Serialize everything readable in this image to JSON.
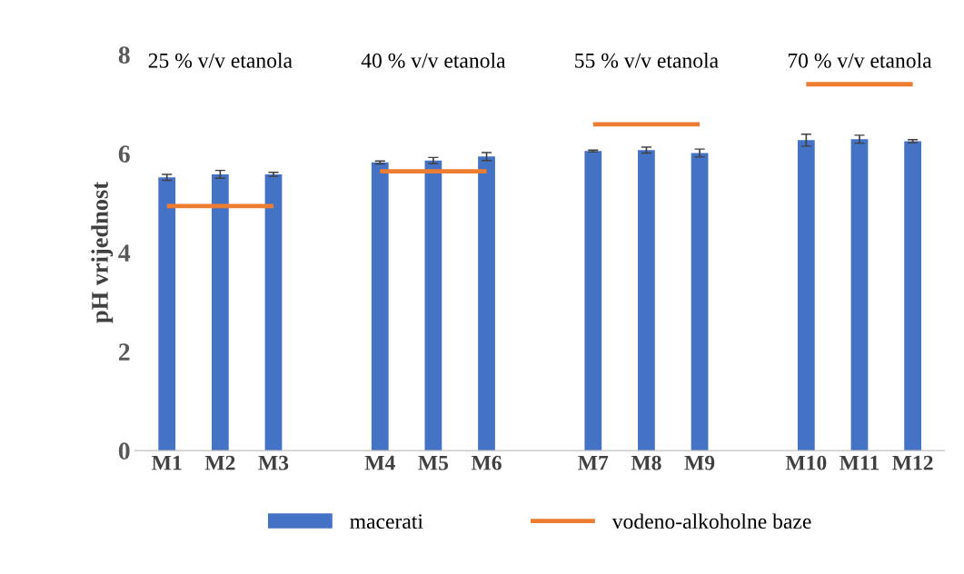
{
  "chart_data": {
    "type": "bar",
    "ylabel": "pH vrijednost",
    "categories": [
      "M1",
      "M2",
      "M3",
      null,
      "M4",
      "M5",
      "M6",
      null,
      "M7",
      "M8",
      "M9",
      null,
      "M10",
      "M11",
      "M12"
    ],
    "series": [
      {
        "name": "macerati",
        "color": "#4472c4",
        "values": [
          5.52,
          5.58,
          5.58,
          null,
          5.82,
          5.86,
          5.94,
          null,
          6.05,
          6.07,
          6.01,
          null,
          6.27,
          6.29,
          6.25
        ],
        "errors": [
          0.06,
          0.08,
          0.04,
          null,
          0.03,
          0.06,
          0.08,
          null,
          0.02,
          0.06,
          0.08,
          null,
          0.12,
          0.08,
          0.03
        ]
      },
      {
        "name": "vodeno-alkoholne baze",
        "type": "line",
        "color": "#ed7d31",
        "values": [
          4.94,
          4.94,
          4.94,
          null,
          5.64,
          5.64,
          5.64,
          null,
          6.59,
          6.59,
          6.59,
          null,
          7.4,
          7.4,
          7.4
        ]
      }
    ],
    "annotations": [
      "25 % v/v etanola",
      "40 % v/v etanola",
      "55 % v/v etanola",
      "70 % v/v etanola"
    ],
    "ylim": [
      0,
      8
    ],
    "yticks": [
      0,
      2,
      4,
      6,
      8
    ],
    "grid": false,
    "legend": "bottom"
  }
}
